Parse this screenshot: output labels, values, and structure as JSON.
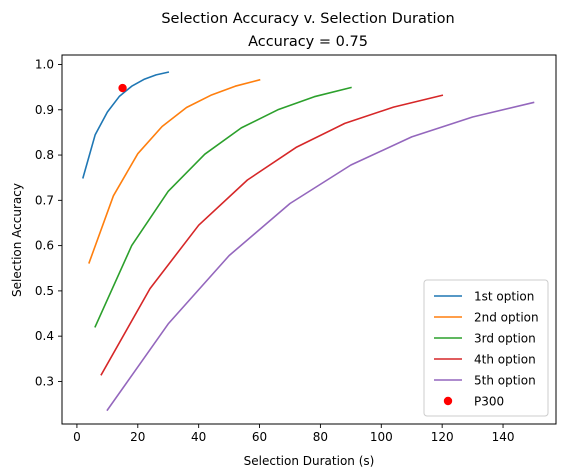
{
  "chart_data": {
    "type": "line",
    "title": "Selection Accuracy v. Selection Duration",
    "subtitle": "Accuracy = 0.75",
    "xlabel": "Selection Duration (s)",
    "ylabel": "Selection Accuracy",
    "xlim": [
      -4.9,
      157.4
    ],
    "ylim": [
      0.206,
      1.021
    ],
    "xticks": [
      0,
      20,
      40,
      60,
      80,
      100,
      120,
      140
    ],
    "xtick_labels": [
      "0",
      "20",
      "40",
      "60",
      "80",
      "100",
      "120",
      "140"
    ],
    "yticks": [
      0.3,
      0.4,
      0.5,
      0.6,
      0.7,
      0.8,
      0.9,
      1.0
    ],
    "ytick_labels": [
      "0.3",
      "0.4",
      "0.5",
      "0.6",
      "0.7",
      "0.8",
      "0.9",
      "1.0"
    ],
    "grid": false,
    "legend": "lower-right",
    "series": [
      {
        "name": "1st option",
        "color": "#1f77b4",
        "x": [
          2,
          6,
          10,
          14,
          18,
          22,
          26,
          30
        ],
        "y": [
          0.75,
          0.845,
          0.895,
          0.93,
          0.952,
          0.967,
          0.977,
          0.983
        ]
      },
      {
        "name": "2nd option",
        "color": "#ff7f0e",
        "x": [
          4,
          12,
          20,
          28,
          36,
          44,
          52,
          60
        ],
        "y": [
          0.562,
          0.71,
          0.803,
          0.863,
          0.905,
          0.932,
          0.952,
          0.966
        ]
      },
      {
        "name": "3rd option",
        "color": "#2ca02c",
        "x": [
          6,
          18,
          30,
          42,
          54,
          66,
          78,
          90
        ],
        "y": [
          0.421,
          0.6,
          0.72,
          0.802,
          0.86,
          0.9,
          0.929,
          0.949
        ]
      },
      {
        "name": "4th option",
        "color": "#d62728",
        "x": [
          8,
          24,
          40,
          56,
          72,
          88,
          104,
          120
        ],
        "y": [
          0.315,
          0.505,
          0.645,
          0.745,
          0.817,
          0.87,
          0.906,
          0.932
        ]
      },
      {
        "name": "5th option",
        "color": "#9467bd",
        "x": [
          10,
          30,
          50,
          70,
          90,
          110,
          130,
          150
        ],
        "y": [
          0.237,
          0.427,
          0.578,
          0.693,
          0.778,
          0.84,
          0.884,
          0.916
        ]
      }
    ],
    "points": [
      {
        "name": "P300",
        "color": "#ff0000",
        "x": 15,
        "y": 0.948
      }
    ]
  }
}
